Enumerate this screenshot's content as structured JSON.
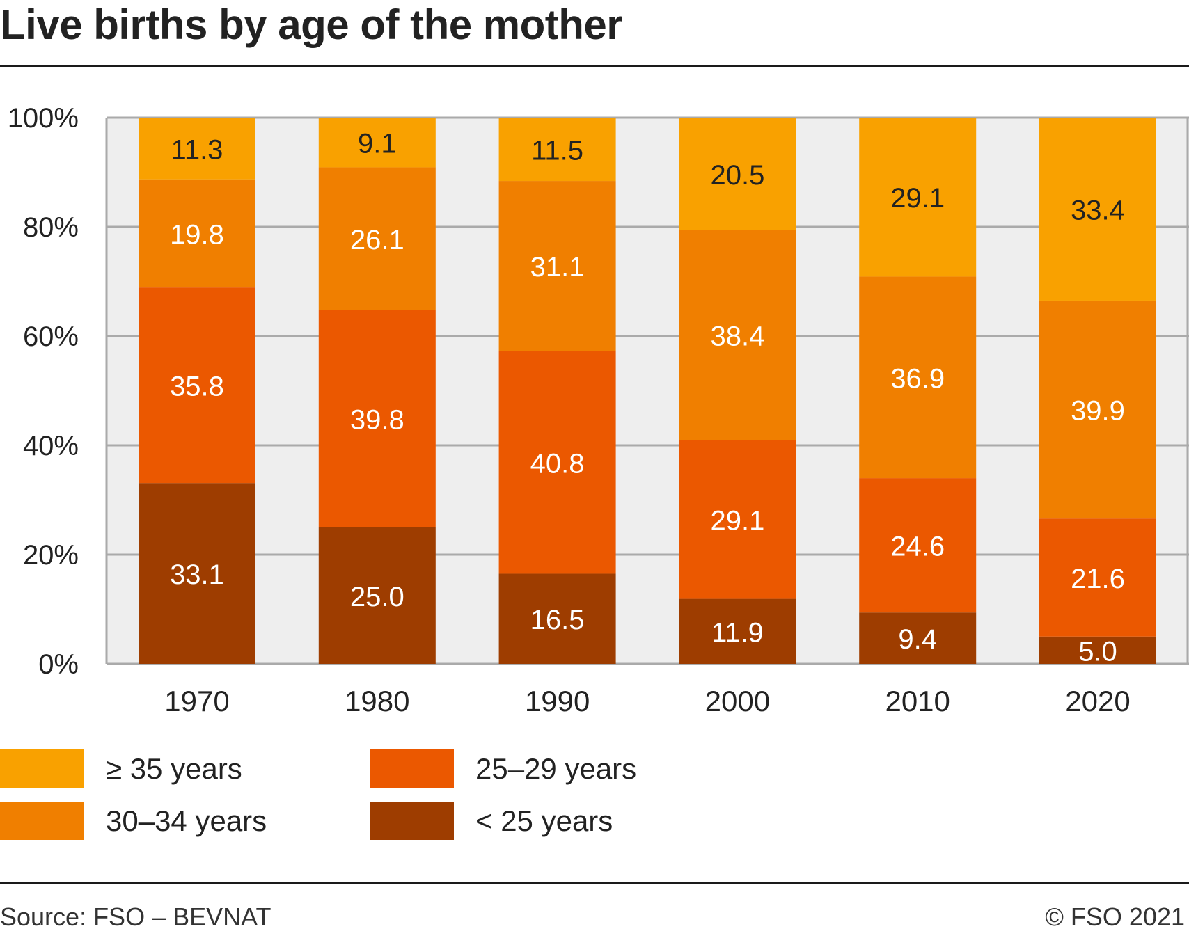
{
  "header": {
    "title": "Live births by age of the mother"
  },
  "footer": {
    "source": "Source: FSO – BEVNAT",
    "copyright": "© FSO 2021"
  },
  "colors": {
    "background_plot": "#eeeeee",
    "grid": "#aaaaaa",
    "label_light": "#ffffff",
    "label_dark": "#222222"
  },
  "chart_data": {
    "type": "bar",
    "stacked": true,
    "title": "Live births by age of the mother",
    "xlabel": "",
    "ylabel": "",
    "ylim": [
      0,
      100
    ],
    "y_ticks": [
      "0%",
      "20%",
      "40%",
      "60%",
      "80%",
      "100%"
    ],
    "grid": true,
    "legend_position": "bottom",
    "categories": [
      "1970",
      "1980",
      "1990",
      "2000",
      "2010",
      "2020"
    ],
    "series": [
      {
        "name": "< 25 years",
        "color": "#9e3d00",
        "label_color": "#ffffff",
        "values": [
          33.1,
          25.0,
          16.5,
          11.9,
          9.4,
          5.0
        ]
      },
      {
        "name": "25–29 years",
        "color": "#eb5800",
        "label_color": "#ffffff",
        "values": [
          35.8,
          39.8,
          40.8,
          29.1,
          24.6,
          21.6
        ]
      },
      {
        "name": "30–34 years",
        "color": "#f07f00",
        "label_color": "#ffffff",
        "values": [
          19.8,
          26.1,
          31.1,
          38.4,
          36.9,
          39.9
        ]
      },
      {
        "name": "≥ 35 years",
        "color": "#f9a100",
        "label_color": "#222222",
        "values": [
          11.3,
          9.1,
          11.5,
          20.5,
          29.1,
          33.4
        ]
      }
    ],
    "data_labels": [
      [
        "33.1",
        "25.0",
        "16.5",
        "11.9",
        "9.4",
        "5.0"
      ],
      [
        "35.8",
        "39.8",
        "40.8",
        "29.1",
        "24.6",
        "21.6"
      ],
      [
        "19.8",
        "26.1",
        "31.1",
        "38.4",
        "36.9",
        "39.9"
      ],
      [
        "11.3",
        "9.1",
        "11.5",
        "20.5",
        "29.1",
        "33.4"
      ]
    ],
    "legend": [
      {
        "label": "≥ 35 years",
        "color": "#f9a100"
      },
      {
        "label": "30–34 years",
        "color": "#f07f00"
      },
      {
        "label": "25–29 years",
        "color": "#eb5800"
      },
      {
        "label": "< 25 years",
        "color": "#9e3d00"
      }
    ]
  }
}
